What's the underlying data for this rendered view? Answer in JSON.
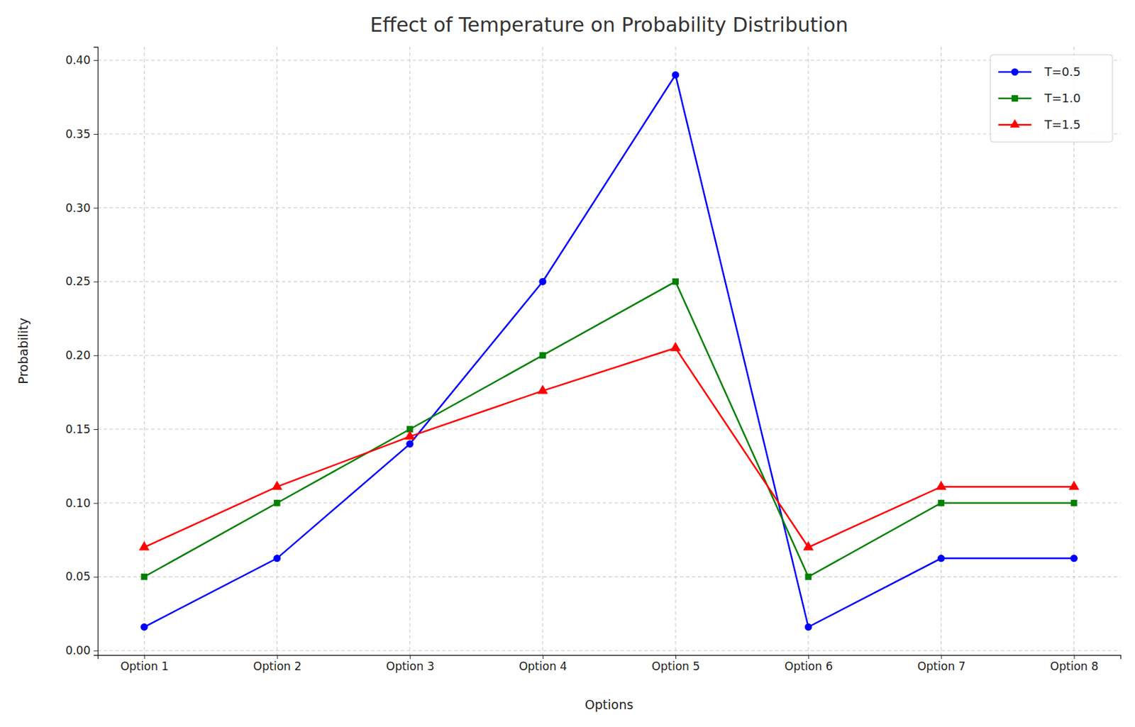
{
  "chart_data": {
    "type": "line",
    "title": "Effect of Temperature on Probability Distribution",
    "x_label": "Options",
    "y_label": "Probability",
    "categories": [
      "Option 1",
      "Option 2",
      "Option 3",
      "Option 4",
      "Option 5",
      "Option 6",
      "Option 7",
      "Option 8"
    ],
    "series": [
      {
        "name": "T=0.5",
        "color": "#0000ff",
        "marker": "circle",
        "line_style": "solid",
        "values": [
          0.016,
          0.0625,
          0.14,
          0.25,
          0.39,
          0.016,
          0.0625,
          0.0625
        ]
      },
      {
        "name": "T=1.0",
        "color": "#008000",
        "marker": "square",
        "line_style": "solid",
        "values": [
          0.05,
          0.1,
          0.15,
          0.2,
          0.25,
          0.05,
          0.1,
          0.1
        ]
      },
      {
        "name": "T=1.5",
        "color": "#ff0000",
        "marker": "triangle",
        "line_style": "solid",
        "values": [
          0.07,
          0.111,
          0.145,
          0.176,
          0.205,
          0.07,
          0.111,
          0.111
        ]
      }
    ],
    "ylim": [
      -0.003,
      0.409
    ],
    "yticks": [
      {
        "value": 0,
        "label": "0.00"
      },
      0.05,
      {
        "value": 0.1,
        "label": "0.10"
      },
      0.15,
      {
        "value": 0.2,
        "label": "0.20"
      },
      0.25,
      {
        "value": 0.3,
        "label": "0.30"
      },
      0.35,
      {
        "value": 0.4,
        "label": "0.40"
      }
    ],
    "grid": true,
    "legend": "upper right"
  }
}
